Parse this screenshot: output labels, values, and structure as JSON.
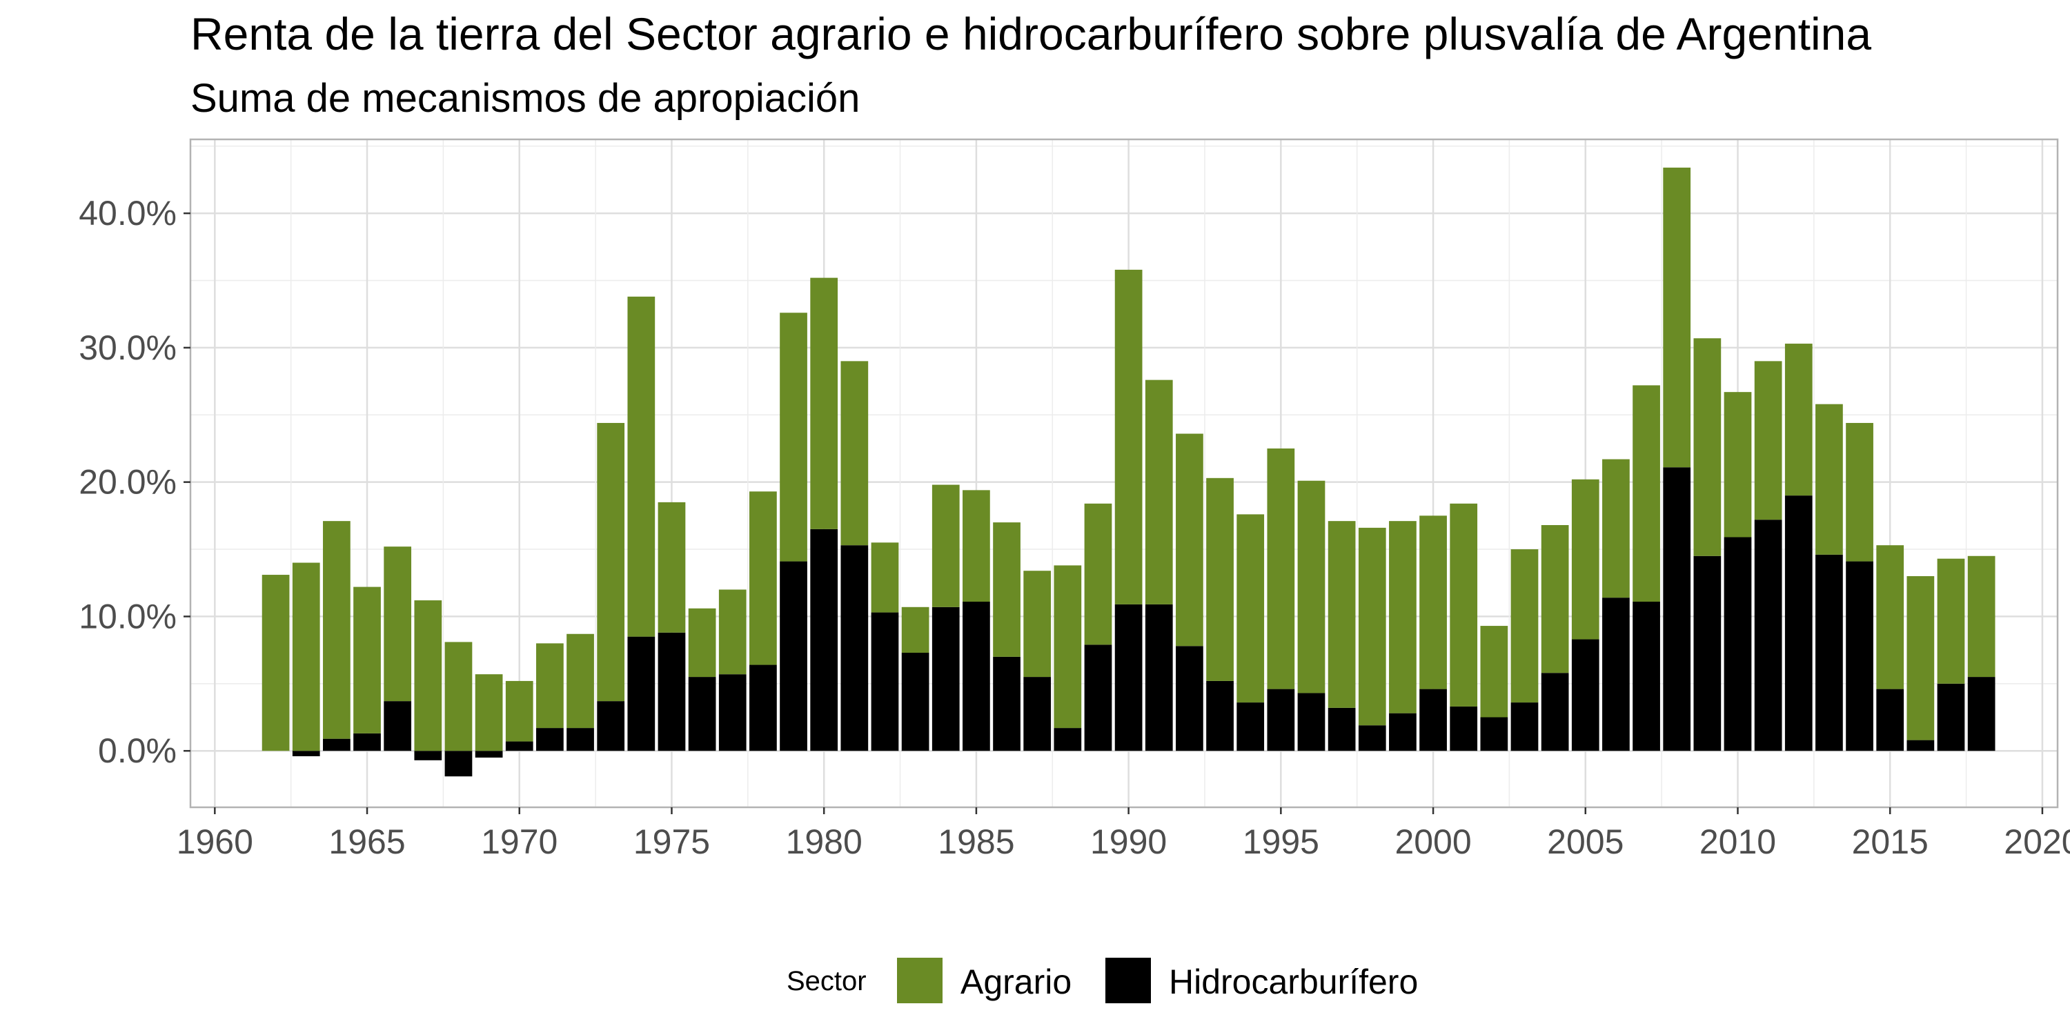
{
  "chart_data": {
    "type": "bar",
    "stacked": true,
    "title": "Renta de la tierra del Sector agrario e hidrocarburífero sobre plusvalía de Argentina",
    "subtitle": "Suma de mecanismos de apropiación",
    "xlabel": "",
    "ylabel": "",
    "x_ticks": [
      "1960",
      "1965",
      "1970",
      "1975",
      "1980",
      "1985",
      "1990",
      "1995",
      "2000",
      "2005",
      "2010",
      "2015",
      "2020"
    ],
    "y_ticks": [
      "0.0%",
      "10.0%",
      "20.0%",
      "30.0%",
      "40.0%"
    ],
    "xlim": [
      1959.2,
      2020.5
    ],
    "ylim": [
      -4.2,
      45.5
    ],
    "grid": true,
    "legend": {
      "title": "Sector",
      "position": "bottom"
    },
    "years": [
      1962,
      1963,
      1964,
      1965,
      1966,
      1967,
      1968,
      1969,
      1970,
      1971,
      1972,
      1973,
      1974,
      1975,
      1976,
      1977,
      1978,
      1979,
      1980,
      1981,
      1982,
      1983,
      1984,
      1985,
      1986,
      1987,
      1988,
      1989,
      1990,
      1991,
      1992,
      1993,
      1994,
      1995,
      1996,
      1997,
      1998,
      1999,
      2000,
      2001,
      2002,
      2003,
      2004,
      2005,
      2006,
      2007,
      2008,
      2009,
      2010,
      2011,
      2012,
      2013,
      2014,
      2015,
      2016,
      2017,
      2018
    ],
    "series": [
      {
        "name": "Hidrocarburífero",
        "color": "#000000",
        "values": [
          0.0,
          -0.4,
          0.9,
          1.3,
          3.7,
          -0.7,
          -1.9,
          -0.5,
          0.7,
          1.7,
          1.7,
          3.7,
          8.5,
          8.8,
          5.5,
          5.7,
          6.4,
          14.1,
          16.5,
          15.3,
          10.3,
          7.3,
          10.7,
          11.1,
          7.0,
          5.5,
          1.7,
          7.9,
          10.9,
          10.9,
          7.8,
          5.2,
          3.6,
          4.6,
          4.3,
          3.2,
          1.9,
          2.8,
          4.6,
          3.3,
          2.5,
          3.6,
          5.8,
          8.3,
          11.4,
          11.1,
          21.1,
          14.5,
          15.9,
          17.2,
          19.0,
          14.6,
          14.1,
          4.6,
          0.8,
          5.0,
          5.5
        ]
      },
      {
        "name": "Agrario",
        "color": "#6a8b25",
        "values": [
          13.1,
          14.0,
          16.2,
          10.9,
          11.5,
          11.2,
          8.1,
          5.7,
          4.5,
          6.3,
          7.0,
          20.7,
          25.3,
          9.7,
          5.1,
          6.3,
          12.9,
          18.5,
          18.7,
          13.7,
          5.2,
          3.4,
          9.1,
          8.3,
          10.0,
          7.9,
          12.1,
          10.5,
          24.9,
          16.7,
          15.8,
          15.1,
          14.0,
          17.9,
          15.8,
          13.9,
          14.7,
          14.3,
          12.9,
          15.1,
          6.8,
          11.4,
          11.0,
          11.9,
          10.3,
          16.1,
          22.3,
          16.2,
          10.8,
          11.8,
          11.3,
          11.2,
          10.3,
          10.7,
          12.2,
          9.3,
          9.0
        ]
      }
    ]
  }
}
